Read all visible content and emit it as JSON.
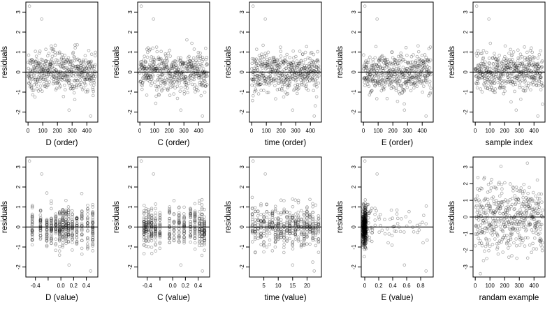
{
  "chart_data": [
    {
      "type": "scatter",
      "xlabel": "D (order)",
      "ylabel": "residuals",
      "xlim": [
        -15,
        475
      ],
      "ylim": [
        -2.5,
        3.5
      ],
      "xticks": [
        0,
        100,
        200,
        300,
        400
      ],
      "yticks": [
        -2,
        -1,
        0,
        1,
        2,
        3
      ],
      "hline": 0,
      "x_kind": "order",
      "n": 460
    },
    {
      "type": "scatter",
      "xlabel": "C (order)",
      "ylabel": "residuals",
      "xlim": [
        -15,
        475
      ],
      "ylim": [
        -2.5,
        3.5
      ],
      "xticks": [
        0,
        100,
        200,
        300,
        400
      ],
      "yticks": [
        -2,
        -1,
        0,
        1,
        2,
        3
      ],
      "hline": 0,
      "x_kind": "order",
      "n": 460
    },
    {
      "type": "scatter",
      "xlabel": "time (order)",
      "ylabel": "residuals",
      "xlim": [
        -15,
        475
      ],
      "ylim": [
        -2.5,
        3.5
      ],
      "xticks": [
        0,
        100,
        200,
        300,
        400
      ],
      "yticks": [
        -2,
        -1,
        0,
        1,
        2,
        3
      ],
      "hline": 0,
      "x_kind": "order",
      "n": 460
    },
    {
      "type": "scatter",
      "xlabel": "E (order)",
      "ylabel": "residuals",
      "xlim": [
        -15,
        475
      ],
      "ylim": [
        -2.5,
        3.5
      ],
      "xticks": [
        0,
        100,
        200,
        300,
        400
      ],
      "yticks": [
        -2,
        -1,
        0,
        1,
        2,
        3
      ],
      "hline": 0,
      "x_kind": "order",
      "n": 460
    },
    {
      "type": "scatter",
      "xlabel": "sample index",
      "ylabel": "residuals",
      "xlim": [
        -15,
        475
      ],
      "ylim": [
        -2.5,
        3.5
      ],
      "xticks": [
        0,
        100,
        200,
        300,
        400
      ],
      "yticks": [
        -2,
        -1,
        0,
        1,
        2,
        3
      ],
      "hline": 0,
      "x_kind": "order",
      "n": 460
    },
    {
      "type": "scatter",
      "xlabel": "D (value)",
      "ylabel": "residuals",
      "xlim": [
        -0.55,
        0.58
      ],
      "ylim": [
        -2.5,
        3.5
      ],
      "xticks": [
        -0.4,
        -0.2,
        0.0,
        0.2,
        0.4
      ],
      "xticklabels": [
        "-0.4",
        "",
        "0.0",
        "0.2",
        "0.4"
      ],
      "yticks": [
        -2,
        -1,
        0,
        1,
        2,
        3
      ],
      "hline": 0,
      "x_kind": "levels",
      "levels": [
        -0.45,
        -0.32,
        -0.22,
        -0.15,
        -0.08,
        -0.02,
        0.03,
        0.08,
        0.12,
        0.18,
        0.25,
        0.33,
        0.42,
        0.5
      ],
      "n": 460
    },
    {
      "type": "scatter",
      "xlabel": "C (value)",
      "ylabel": "residuals",
      "xlim": [
        -0.55,
        0.58
      ],
      "ylim": [
        -2.5,
        3.5
      ],
      "xticks": [
        -0.4,
        -0.2,
        0.0,
        0.2,
        0.4
      ],
      "xticklabels": [
        "-0.4",
        "",
        "0.0",
        "0.2",
        "0.4"
      ],
      "yticks": [
        -2,
        -1,
        0,
        1,
        2,
        3
      ],
      "hline": 0,
      "x_kind": "levels",
      "levels": [
        -0.45,
        -0.42,
        -0.38,
        -0.33,
        -0.27,
        -0.2,
        -0.05,
        0.02,
        0.1,
        0.18,
        0.28,
        0.35,
        0.42,
        0.46,
        0.5
      ],
      "n": 460
    },
    {
      "type": "scatter",
      "xlabel": "time (value)",
      "ylabel": "residuals",
      "xlim": [
        0,
        25
      ],
      "ylim": [
        -2.5,
        3.5
      ],
      "xticks": [
        5,
        10,
        15,
        20
      ],
      "yticks": [
        -2,
        -1,
        0,
        1,
        2,
        3
      ],
      "hline": 0,
      "x_kind": "levels",
      "levels": [
        1,
        2,
        3,
        4,
        5,
        6,
        7,
        8,
        9,
        10,
        11,
        12,
        13,
        14,
        15,
        16,
        17,
        18,
        19,
        20,
        21,
        22,
        23,
        24
      ],
      "n": 460
    },
    {
      "type": "scatter",
      "xlabel": "E (value)",
      "ylabel": "residuals",
      "xlim": [
        -0.05,
        0.98
      ],
      "ylim": [
        -2.5,
        3.5
      ],
      "xticks": [
        0.0,
        0.2,
        0.4,
        0.6,
        0.8
      ],
      "yticks": [
        -2,
        -1,
        0,
        1,
        2,
        3
      ],
      "hline": 0,
      "x_kind": "skewed",
      "n": 460
    },
    {
      "type": "scatter",
      "xlabel": "randam example",
      "ylabel": "residuals",
      "xlim": [
        -15,
        475
      ],
      "ylim": [
        -3.6,
        3.6
      ],
      "xticks": [
        0,
        100,
        200,
        300,
        400
      ],
      "yticks": [
        -3,
        -2,
        -1,
        0,
        1,
        2,
        3
      ],
      "hline": 0,
      "x_kind": "order",
      "spread": "wide",
      "n": 460
    }
  ]
}
